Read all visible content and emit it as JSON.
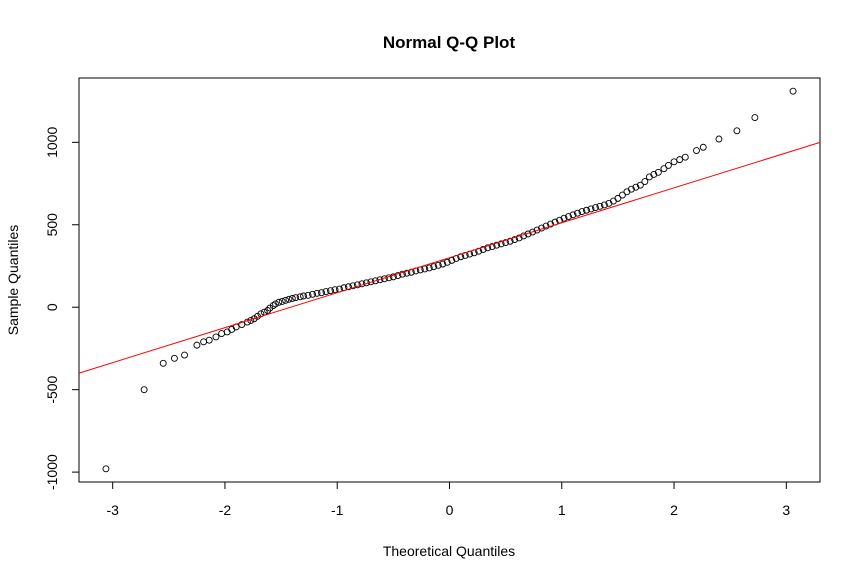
{
  "chart_data": {
    "type": "scatter",
    "title": "Normal Q-Q Plot",
    "xlabel": "Theoretical Quantiles",
    "ylabel": "Sample Quantiles",
    "xlim": [
      -3.3,
      3.3
    ],
    "ylim": [
      -1060,
      1390
    ],
    "x_ticks": [
      -3,
      -2,
      -1,
      0,
      1,
      2,
      3
    ],
    "x_tick_labels": [
      "-3",
      "-2",
      "-1",
      "0",
      "1",
      "2",
      "3"
    ],
    "y_ticks": [
      -1000,
      -500,
      0,
      500,
      1000
    ],
    "y_tick_labels": [
      "-1000",
      "-500",
      "0",
      "500",
      "1000"
    ],
    "grid": false,
    "point_color": "#000000",
    "line_color": "#ff0000",
    "reference_line": {
      "intercept": 300,
      "slope": 212
    },
    "points": [
      [
        -3.06,
        -980
      ],
      [
        -2.72,
        -500
      ],
      [
        -2.55,
        -340
      ],
      [
        -2.45,
        -310
      ],
      [
        -2.36,
        -290
      ],
      [
        -2.25,
        -230
      ],
      [
        -2.19,
        -210
      ],
      [
        -2.14,
        -200
      ],
      [
        -2.08,
        -180
      ],
      [
        -2.03,
        -160
      ],
      [
        -1.98,
        -150
      ],
      [
        -1.94,
        -135
      ],
      [
        -1.9,
        -120
      ],
      [
        -1.85,
        -105
      ],
      [
        -1.8,
        -90
      ],
      [
        -1.77,
        -80
      ],
      [
        -1.74,
        -70
      ],
      [
        -1.71,
        -55
      ],
      [
        -1.68,
        -40
      ],
      [
        -1.65,
        -30
      ],
      [
        -1.62,
        -20
      ],
      [
        -1.6,
        -5
      ],
      [
        -1.57,
        10
      ],
      [
        -1.55,
        20
      ],
      [
        -1.52,
        30
      ],
      [
        -1.49,
        35
      ],
      [
        -1.46,
        42
      ],
      [
        -1.43,
        48
      ],
      [
        -1.4,
        53
      ],
      [
        -1.37,
        58
      ],
      [
        -1.33,
        63
      ],
      [
        -1.3,
        68
      ],
      [
        -1.26,
        72
      ],
      [
        -1.22,
        78
      ],
      [
        -1.18,
        84
      ],
      [
        -1.14,
        88
      ],
      [
        -1.1,
        95
      ],
      [
        -1.06,
        100
      ],
      [
        -1.02,
        106
      ],
      [
        -0.98,
        110
      ],
      [
        -0.94,
        118
      ],
      [
        -0.9,
        124
      ],
      [
        -0.86,
        130
      ],
      [
        -0.82,
        136
      ],
      [
        -0.78,
        142
      ],
      [
        -0.74,
        148
      ],
      [
        -0.7,
        154
      ],
      [
        -0.66,
        160
      ],
      [
        -0.62,
        166
      ],
      [
        -0.58,
        172
      ],
      [
        -0.54,
        178
      ],
      [
        -0.5,
        184
      ],
      [
        -0.46,
        192
      ],
      [
        -0.42,
        200
      ],
      [
        -0.38,
        206
      ],
      [
        -0.34,
        212
      ],
      [
        -0.3,
        220
      ],
      [
        -0.26,
        226
      ],
      [
        -0.22,
        232
      ],
      [
        -0.18,
        238
      ],
      [
        -0.14,
        246
      ],
      [
        -0.1,
        254
      ],
      [
        -0.06,
        262
      ],
      [
        -0.02,
        272
      ],
      [
        0.02,
        284
      ],
      [
        0.06,
        296
      ],
      [
        0.1,
        306
      ],
      [
        0.14,
        314
      ],
      [
        0.18,
        322
      ],
      [
        0.22,
        330
      ],
      [
        0.26,
        340
      ],
      [
        0.3,
        350
      ],
      [
        0.34,
        360
      ],
      [
        0.38,
        368
      ],
      [
        0.42,
        376
      ],
      [
        0.46,
        384
      ],
      [
        0.5,
        392
      ],
      [
        0.54,
        400
      ],
      [
        0.58,
        410
      ],
      [
        0.62,
        420
      ],
      [
        0.66,
        432
      ],
      [
        0.7,
        444
      ],
      [
        0.74,
        456
      ],
      [
        0.78,
        468
      ],
      [
        0.82,
        480
      ],
      [
        0.86,
        492
      ],
      [
        0.9,
        504
      ],
      [
        0.94,
        516
      ],
      [
        0.98,
        528
      ],
      [
        1.02,
        540
      ],
      [
        1.06,
        550
      ],
      [
        1.1,
        560
      ],
      [
        1.14,
        570
      ],
      [
        1.18,
        580
      ],
      [
        1.22,
        588
      ],
      [
        1.26,
        596
      ],
      [
        1.3,
        604
      ],
      [
        1.34,
        612
      ],
      [
        1.38,
        620
      ],
      [
        1.42,
        630
      ],
      [
        1.46,
        644
      ],
      [
        1.5,
        660
      ],
      [
        1.54,
        680
      ],
      [
        1.58,
        700
      ],
      [
        1.62,
        716
      ],
      [
        1.66,
        728
      ],
      [
        1.7,
        740
      ],
      [
        1.74,
        762
      ],
      [
        1.78,
        790
      ],
      [
        1.82,
        805
      ],
      [
        1.86,
        818
      ],
      [
        1.91,
        840
      ],
      [
        1.95,
        860
      ],
      [
        2.0,
        882
      ],
      [
        2.05,
        895
      ],
      [
        2.1,
        910
      ],
      [
        2.2,
        950
      ],
      [
        2.26,
        970
      ],
      [
        2.4,
        1020
      ],
      [
        2.56,
        1070
      ],
      [
        2.72,
        1150
      ],
      [
        3.06,
        1310
      ]
    ]
  }
}
